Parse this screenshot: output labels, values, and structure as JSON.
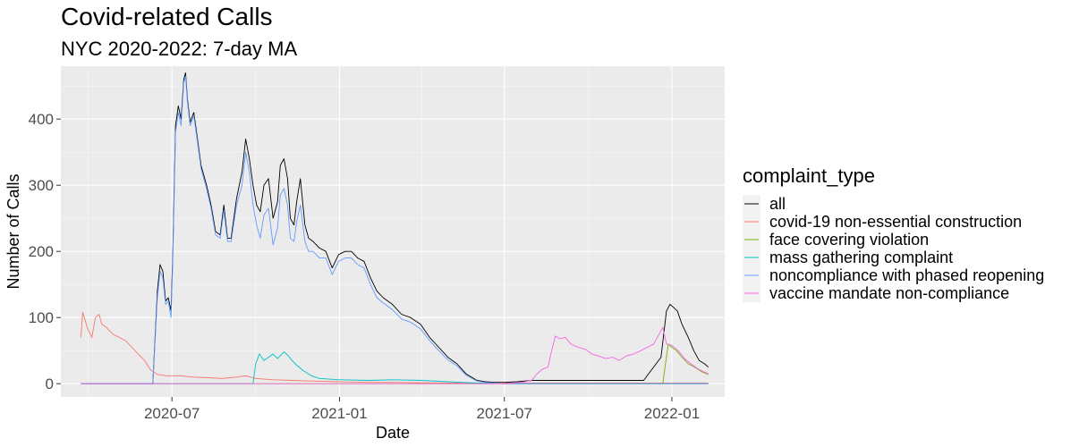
{
  "chart_data": {
    "type": "line",
    "title": "Covid-related Calls",
    "subtitle": "NYC 2020-2022: 7-day MA",
    "xlabel": "Date",
    "ylabel": "Number of Calls",
    "x_type": "date",
    "x_ticks": [
      "2020-07",
      "2021-01",
      "2021-07",
      "2022-01"
    ],
    "y_ticks": [
      0,
      100,
      200,
      300,
      400
    ],
    "xlim": [
      "2020-03-01",
      "2022-02-28"
    ],
    "ylim": [
      -20,
      480
    ],
    "grid": true,
    "legend_position": "right",
    "legend_title": "complaint_type",
    "series": [
      {
        "name": "all",
        "color": "#000000",
        "points": [
          [
            "2020-03-23",
            0
          ],
          [
            "2020-06-10",
            0
          ],
          [
            "2020-06-15",
            140
          ],
          [
            "2020-06-18",
            180
          ],
          [
            "2020-06-21",
            170
          ],
          [
            "2020-06-24",
            125
          ],
          [
            "2020-06-27",
            130
          ],
          [
            "2020-06-30",
            110
          ],
          [
            "2020-07-02",
            200
          ],
          [
            "2020-07-05",
            390
          ],
          [
            "2020-07-08",
            420
          ],
          [
            "2020-07-11",
            400
          ],
          [
            "2020-07-14",
            460
          ],
          [
            "2020-07-16",
            470
          ],
          [
            "2020-07-18",
            430
          ],
          [
            "2020-07-21",
            395
          ],
          [
            "2020-07-25",
            410
          ],
          [
            "2020-07-28",
            380
          ],
          [
            "2020-08-02",
            330
          ],
          [
            "2020-08-08",
            300
          ],
          [
            "2020-08-13",
            270
          ],
          [
            "2020-08-18",
            230
          ],
          [
            "2020-08-23",
            225
          ],
          [
            "2020-08-27",
            270
          ],
          [
            "2020-08-31",
            220
          ],
          [
            "2020-09-04",
            220
          ],
          [
            "2020-09-10",
            280
          ],
          [
            "2020-09-16",
            320
          ],
          [
            "2020-09-20",
            370
          ],
          [
            "2020-09-24",
            340
          ],
          [
            "2020-09-28",
            300
          ],
          [
            "2020-10-02",
            270
          ],
          [
            "2020-10-06",
            260
          ],
          [
            "2020-10-10",
            300
          ],
          [
            "2020-10-15",
            310
          ],
          [
            "2020-10-20",
            250
          ],
          [
            "2020-10-25",
            275
          ],
          [
            "2020-10-28",
            330
          ],
          [
            "2020-11-01",
            340
          ],
          [
            "2020-11-05",
            310
          ],
          [
            "2020-11-08",
            250
          ],
          [
            "2020-11-12",
            240
          ],
          [
            "2020-11-15",
            275
          ],
          [
            "2020-11-19",
            310
          ],
          [
            "2020-11-24",
            240
          ],
          [
            "2020-11-28",
            220
          ],
          [
            "2020-12-03",
            215
          ],
          [
            "2020-12-10",
            205
          ],
          [
            "2020-12-17",
            200
          ],
          [
            "2020-12-24",
            175
          ],
          [
            "2020-12-31",
            195
          ],
          [
            "2021-01-07",
            200
          ],
          [
            "2021-01-14",
            200
          ],
          [
            "2021-01-21",
            190
          ],
          [
            "2021-01-28",
            185
          ],
          [
            "2021-02-04",
            160
          ],
          [
            "2021-02-11",
            140
          ],
          [
            "2021-02-18",
            130
          ],
          [
            "2021-02-28",
            120
          ],
          [
            "2021-03-10",
            105
          ],
          [
            "2021-03-20",
            100
          ],
          [
            "2021-03-31",
            90
          ],
          [
            "2021-04-10",
            70
          ],
          [
            "2021-04-20",
            55
          ],
          [
            "2021-04-30",
            40
          ],
          [
            "2021-05-10",
            30
          ],
          [
            "2021-05-20",
            15
          ],
          [
            "2021-06-01",
            5
          ],
          [
            "2021-06-10",
            3
          ],
          [
            "2021-06-20",
            2
          ],
          [
            "2021-07-01",
            2
          ],
          [
            "2021-07-15",
            3
          ],
          [
            "2021-08-01",
            5
          ],
          [
            "2021-12-01",
            5
          ],
          [
            "2021-12-20",
            40
          ],
          [
            "2021-12-26",
            110
          ],
          [
            "2021-12-30",
            120
          ],
          [
            "2022-01-03",
            115
          ],
          [
            "2022-01-07",
            110
          ],
          [
            "2022-01-12",
            90
          ],
          [
            "2022-01-19",
            70
          ],
          [
            "2022-01-25",
            50
          ],
          [
            "2022-01-31",
            35
          ],
          [
            "2022-02-06",
            30
          ],
          [
            "2022-02-10",
            25
          ]
        ]
      },
      {
        "name": "covid-19 non-essential construction",
        "color": "#F8766D",
        "points": [
          [
            "2020-03-23",
            70
          ],
          [
            "2020-03-25",
            108
          ],
          [
            "2020-03-30",
            85
          ],
          [
            "2020-04-04",
            70
          ],
          [
            "2020-04-08",
            100
          ],
          [
            "2020-04-12",
            105
          ],
          [
            "2020-04-15",
            90
          ],
          [
            "2020-04-20",
            85
          ],
          [
            "2020-04-27",
            75
          ],
          [
            "2020-05-04",
            70
          ],
          [
            "2020-05-11",
            65
          ],
          [
            "2020-05-18",
            55
          ],
          [
            "2020-05-25",
            45
          ],
          [
            "2020-06-01",
            35
          ],
          [
            "2020-06-08",
            20
          ],
          [
            "2020-06-15",
            14
          ],
          [
            "2020-06-25",
            12
          ],
          [
            "2020-07-10",
            12
          ],
          [
            "2020-07-25",
            10
          ],
          [
            "2020-08-10",
            9
          ],
          [
            "2020-08-25",
            8
          ],
          [
            "2020-09-10",
            10
          ],
          [
            "2020-09-20",
            12
          ],
          [
            "2020-10-01",
            8
          ],
          [
            "2020-10-20",
            6
          ],
          [
            "2020-11-10",
            5
          ],
          [
            "2020-12-01",
            4
          ],
          [
            "2021-01-01",
            3
          ],
          [
            "2021-02-01",
            2
          ],
          [
            "2021-03-01",
            2
          ],
          [
            "2021-05-01",
            1
          ],
          [
            "2021-07-01",
            1
          ],
          [
            "2022-02-10",
            1
          ]
        ]
      },
      {
        "name": "face covering violation",
        "color": "#7CAE00",
        "points": [
          [
            "2020-03-23",
            0
          ],
          [
            "2021-12-22",
            0
          ],
          [
            "2021-12-25",
            30
          ],
          [
            "2021-12-28",
            60
          ],
          [
            "2022-01-01",
            55
          ],
          [
            "2022-01-06",
            50
          ],
          [
            "2022-01-12",
            40
          ],
          [
            "2022-01-19",
            30
          ],
          [
            "2022-01-26",
            25
          ],
          [
            "2022-02-03",
            18
          ],
          [
            "2022-02-10",
            14
          ]
        ]
      },
      {
        "name": "mass gathering complaint",
        "color": "#00BFC4",
        "points": [
          [
            "2020-03-23",
            0
          ],
          [
            "2020-09-28",
            0
          ],
          [
            "2020-10-01",
            30
          ],
          [
            "2020-10-05",
            45
          ],
          [
            "2020-10-10",
            35
          ],
          [
            "2020-10-15",
            40
          ],
          [
            "2020-10-20",
            45
          ],
          [
            "2020-10-25",
            38
          ],
          [
            "2020-11-01",
            48
          ],
          [
            "2020-11-06",
            42
          ],
          [
            "2020-11-10",
            35
          ],
          [
            "2020-11-15",
            28
          ],
          [
            "2020-11-22",
            20
          ],
          [
            "2020-12-01",
            12
          ],
          [
            "2020-12-10",
            8
          ],
          [
            "2021-01-01",
            6
          ],
          [
            "2021-02-01",
            5
          ],
          [
            "2021-03-01",
            6
          ],
          [
            "2021-04-01",
            5
          ],
          [
            "2021-05-01",
            3
          ],
          [
            "2021-06-01",
            1
          ],
          [
            "2021-07-01",
            0
          ],
          [
            "2022-02-10",
            0
          ]
        ]
      },
      {
        "name": "noncompliance with phased reopening",
        "color": "#619CFF",
        "points": [
          [
            "2020-03-23",
            0
          ],
          [
            "2020-06-10",
            0
          ],
          [
            "2020-06-15",
            130
          ],
          [
            "2020-06-18",
            170
          ],
          [
            "2020-06-21",
            160
          ],
          [
            "2020-06-24",
            120
          ],
          [
            "2020-06-27",
            125
          ],
          [
            "2020-06-30",
            100
          ],
          [
            "2020-07-02",
            190
          ],
          [
            "2020-07-05",
            380
          ],
          [
            "2020-07-08",
            410
          ],
          [
            "2020-07-11",
            390
          ],
          [
            "2020-07-14",
            455
          ],
          [
            "2020-07-16",
            465
          ],
          [
            "2020-07-18",
            425
          ],
          [
            "2020-07-21",
            390
          ],
          [
            "2020-07-25",
            405
          ],
          [
            "2020-07-28",
            375
          ],
          [
            "2020-08-02",
            325
          ],
          [
            "2020-08-08",
            295
          ],
          [
            "2020-08-13",
            265
          ],
          [
            "2020-08-18",
            225
          ],
          [
            "2020-08-23",
            220
          ],
          [
            "2020-08-27",
            262
          ],
          [
            "2020-08-31",
            215
          ],
          [
            "2020-09-04",
            215
          ],
          [
            "2020-09-10",
            270
          ],
          [
            "2020-09-16",
            300
          ],
          [
            "2020-09-20",
            350
          ],
          [
            "2020-09-24",
            320
          ],
          [
            "2020-09-28",
            270
          ],
          [
            "2020-10-02",
            240
          ],
          [
            "2020-10-06",
            220
          ],
          [
            "2020-10-10",
            255
          ],
          [
            "2020-10-15",
            265
          ],
          [
            "2020-10-20",
            210
          ],
          [
            "2020-10-25",
            235
          ],
          [
            "2020-10-28",
            285
          ],
          [
            "2020-11-01",
            295
          ],
          [
            "2020-11-05",
            270
          ],
          [
            "2020-11-08",
            220
          ],
          [
            "2020-11-12",
            215
          ],
          [
            "2020-11-15",
            245
          ],
          [
            "2020-11-19",
            270
          ],
          [
            "2020-11-24",
            215
          ],
          [
            "2020-11-28",
            200
          ],
          [
            "2020-12-03",
            200
          ],
          [
            "2020-12-10",
            190
          ],
          [
            "2020-12-17",
            190
          ],
          [
            "2020-12-24",
            165
          ],
          [
            "2020-12-31",
            185
          ],
          [
            "2021-01-07",
            190
          ],
          [
            "2021-01-14",
            190
          ],
          [
            "2021-01-21",
            180
          ],
          [
            "2021-01-28",
            175
          ],
          [
            "2021-02-04",
            150
          ],
          [
            "2021-02-11",
            130
          ],
          [
            "2021-02-18",
            122
          ],
          [
            "2021-02-28",
            112
          ],
          [
            "2021-03-10",
            98
          ],
          [
            "2021-03-20",
            93
          ],
          [
            "2021-03-31",
            83
          ],
          [
            "2021-04-10",
            65
          ],
          [
            "2021-04-20",
            50
          ],
          [
            "2021-04-30",
            36
          ],
          [
            "2021-05-10",
            27
          ],
          [
            "2021-05-20",
            13
          ],
          [
            "2021-06-01",
            4
          ],
          [
            "2021-06-10",
            2
          ],
          [
            "2021-06-20",
            1
          ],
          [
            "2021-07-01",
            0
          ],
          [
            "2022-02-10",
            0
          ]
        ]
      },
      {
        "name": "vaccine mandate non-compliance",
        "color": "#F564E3",
        "points": [
          [
            "2020-03-23",
            0
          ],
          [
            "2021-06-25",
            0
          ],
          [
            "2021-07-05",
            0
          ],
          [
            "2021-07-20",
            2
          ],
          [
            "2021-07-31",
            5
          ],
          [
            "2021-08-06",
            15
          ],
          [
            "2021-08-12",
            22
          ],
          [
            "2021-08-18",
            25
          ],
          [
            "2021-08-22",
            50
          ],
          [
            "2021-08-26",
            72
          ],
          [
            "2021-08-31",
            68
          ],
          [
            "2021-09-06",
            70
          ],
          [
            "2021-09-12",
            60
          ],
          [
            "2021-09-20",
            55
          ],
          [
            "2021-09-28",
            52
          ],
          [
            "2021-10-05",
            45
          ],
          [
            "2021-10-12",
            42
          ],
          [
            "2021-10-20",
            38
          ],
          [
            "2021-10-28",
            40
          ],
          [
            "2021-11-04",
            35
          ],
          [
            "2021-11-12",
            42
          ],
          [
            "2021-11-20",
            45
          ],
          [
            "2021-11-28",
            50
          ],
          [
            "2021-12-05",
            55
          ],
          [
            "2021-12-12",
            60
          ],
          [
            "2021-12-18",
            75
          ],
          [
            "2021-12-22",
            85
          ],
          [
            "2021-12-26",
            60
          ],
          [
            "2022-01-01",
            58
          ],
          [
            "2022-01-08",
            50
          ],
          [
            "2022-01-15",
            38
          ],
          [
            "2022-01-22",
            30
          ],
          [
            "2022-01-30",
            22
          ],
          [
            "2022-02-05",
            18
          ],
          [
            "2022-02-10",
            15
          ]
        ]
      }
    ]
  }
}
